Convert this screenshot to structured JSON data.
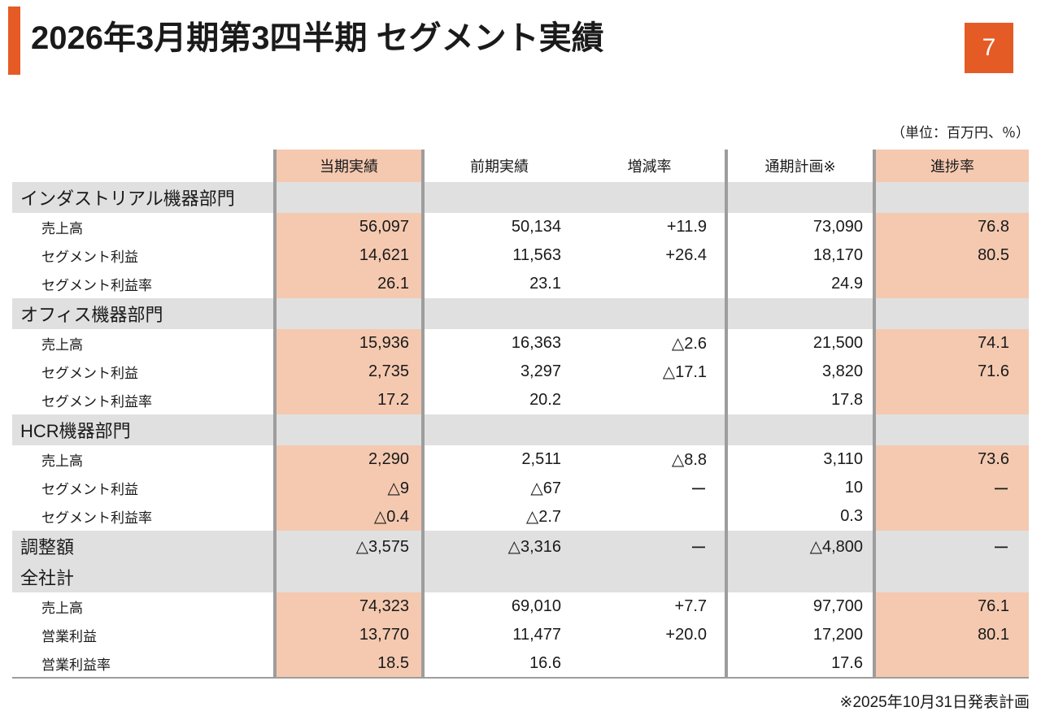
{
  "page": {
    "title": "2026年3月期第3四半期 セグメント実績",
    "page_number": "7",
    "unit_note": "（単位：百万円、％）",
    "footnote": "※2025年10月31日発表計画"
  },
  "colors": {
    "accent_orange": "#E55B25",
    "highlight_column": "#F4C9B0",
    "section_band_gray": "#E0E0E0",
    "separator_gray": "#9D9D9D"
  },
  "table": {
    "columns": [
      "当期実績",
      "前期実績",
      "増減率",
      "通期計画※",
      "進捗率"
    ],
    "highlighted_columns": [
      "当期実績",
      "進捗率"
    ],
    "sections": [
      {
        "name": "インダストリアル機器部門",
        "band_values": [
          "",
          "",
          "",
          "",
          ""
        ],
        "rows": [
          {
            "label": "売上高",
            "values": [
              "56,097",
              "50,134",
              "+11.9",
              "73,090",
              "76.8"
            ]
          },
          {
            "label": "セグメント利益",
            "values": [
              "14,621",
              "11,563",
              "+26.4",
              "18,170",
              "80.5"
            ]
          },
          {
            "label": "セグメント利益率",
            "values": [
              "26.1",
              "23.1",
              "",
              "24.9",
              ""
            ]
          }
        ]
      },
      {
        "name": "オフィス機器部門",
        "band_values": [
          "",
          "",
          "",
          "",
          ""
        ],
        "rows": [
          {
            "label": "売上高",
            "values": [
              "15,936",
              "16,363",
              "△2.6",
              "21,500",
              "74.1"
            ]
          },
          {
            "label": "セグメント利益",
            "values": [
              "2,735",
              "3,297",
              "△17.1",
              "3,820",
              "71.6"
            ]
          },
          {
            "label": "セグメント利益率",
            "values": [
              "17.2",
              "20.2",
              "",
              "17.8",
              ""
            ]
          }
        ]
      },
      {
        "name": "HCR機器部門",
        "band_values": [
          "",
          "",
          "",
          "",
          ""
        ],
        "rows": [
          {
            "label": "売上高",
            "values": [
              "2,290",
              "2,511",
              "△8.8",
              "3,110",
              "73.6"
            ]
          },
          {
            "label": "セグメント利益",
            "values": [
              "△9",
              "△67",
              "ー",
              "10",
              "ー"
            ]
          },
          {
            "label": "セグメント利益率",
            "values": [
              "△0.4",
              "△2.7",
              "",
              "0.3",
              ""
            ]
          }
        ]
      },
      {
        "name": "調整額",
        "band_values": [
          "△3,575",
          "△3,316",
          "ー",
          "△4,800",
          "ー"
        ],
        "rows": []
      },
      {
        "name": "全社計",
        "band_values": [
          "",
          "",
          "",
          "",
          ""
        ],
        "rows": [
          {
            "label": "売上高",
            "values": [
              "74,323",
              "69,010",
              "+7.7",
              "97,700",
              "76.1"
            ]
          },
          {
            "label": "営業利益",
            "values": [
              "13,770",
              "11,477",
              "+20.0",
              "17,200",
              "80.1"
            ]
          },
          {
            "label": "営業利益率",
            "values": [
              "18.5",
              "16.6",
              "",
              "17.6",
              ""
            ]
          }
        ]
      }
    ]
  }
}
